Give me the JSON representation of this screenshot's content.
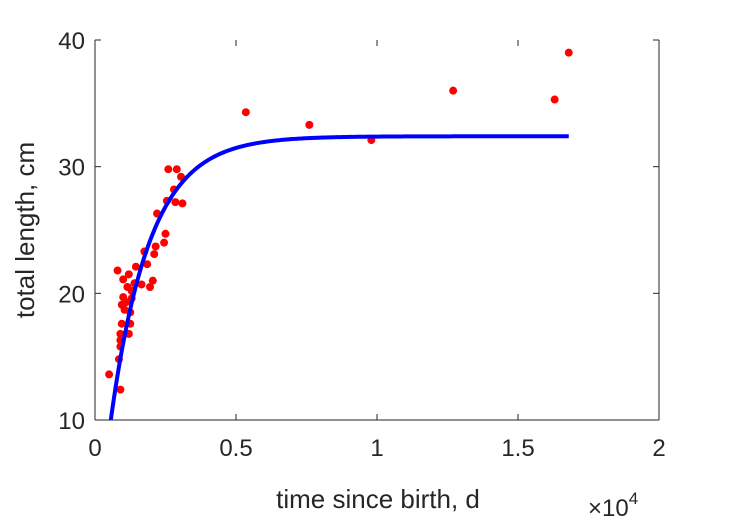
{
  "chart_data": {
    "type": "scatter",
    "xlabel": "time since birth, d",
    "ylabel": "total length, cm",
    "x_multiplier": {
      "base": "×10",
      "exponent": "4"
    },
    "xlim": [
      0,
      20000
    ],
    "ylim": [
      10,
      40
    ],
    "x_ticks": [
      0,
      5000,
      10000,
      15000,
      20000
    ],
    "x_tick_labels": [
      "0",
      "0.5",
      "1",
      "1.5",
      "2"
    ],
    "y_ticks": [
      10,
      20,
      30,
      40
    ],
    "y_tick_labels": [
      "10",
      "20",
      "30",
      "40"
    ],
    "grid": false,
    "box": "left-bottom-right",
    "colors": {
      "points": "#ff0000",
      "curve": "#0000ff",
      "axis": "#262626"
    },
    "series": [
      {
        "type": "scatter",
        "color": "#ff0000",
        "points": [
          [
            500,
            13.6
          ],
          [
            800,
            21.8
          ],
          [
            850,
            14.8
          ],
          [
            900,
            12.4
          ],
          [
            900,
            15.8
          ],
          [
            900,
            16.3
          ],
          [
            900,
            16.8
          ],
          [
            950,
            17.6
          ],
          [
            950,
            19.1
          ],
          [
            1000,
            19.7
          ],
          [
            1000,
            21.1
          ],
          [
            1050,
            18.7
          ],
          [
            1100,
            19.3
          ],
          [
            1150,
            20.5
          ],
          [
            1200,
            21.5
          ],
          [
            1200,
            16.8
          ],
          [
            1250,
            17.6
          ],
          [
            1250,
            18.5
          ],
          [
            1300,
            19.6
          ],
          [
            1300,
            20.2
          ],
          [
            1400,
            20.8
          ],
          [
            1450,
            22.1
          ],
          [
            1650,
            20.7
          ],
          [
            1750,
            23.3
          ],
          [
            1850,
            22.3
          ],
          [
            1950,
            20.5
          ],
          [
            2050,
            21.0
          ],
          [
            2100,
            23.1
          ],
          [
            2150,
            23.7
          ],
          [
            2200,
            26.3
          ],
          [
            2450,
            24.0
          ],
          [
            2500,
            24.7
          ],
          [
            2550,
            27.3
          ],
          [
            2600,
            29.8
          ],
          [
            2800,
            28.2
          ],
          [
            2850,
            27.2
          ],
          [
            2900,
            29.8
          ],
          [
            3050,
            29.2
          ],
          [
            3100,
            27.1
          ],
          [
            5350,
            34.3
          ],
          [
            7600,
            33.3
          ],
          [
            9800,
            32.1
          ],
          [
            12700,
            36.0
          ],
          [
            16300,
            35.3
          ],
          [
            16800,
            39.0
          ]
        ]
      },
      {
        "type": "line",
        "color": "#0000ff",
        "model": {
          "Linf": 32.4,
          "L0": 10.0,
          "k": 0.000718,
          "t0": 560
        },
        "x_range": [
          560,
          16800
        ]
      }
    ]
  }
}
